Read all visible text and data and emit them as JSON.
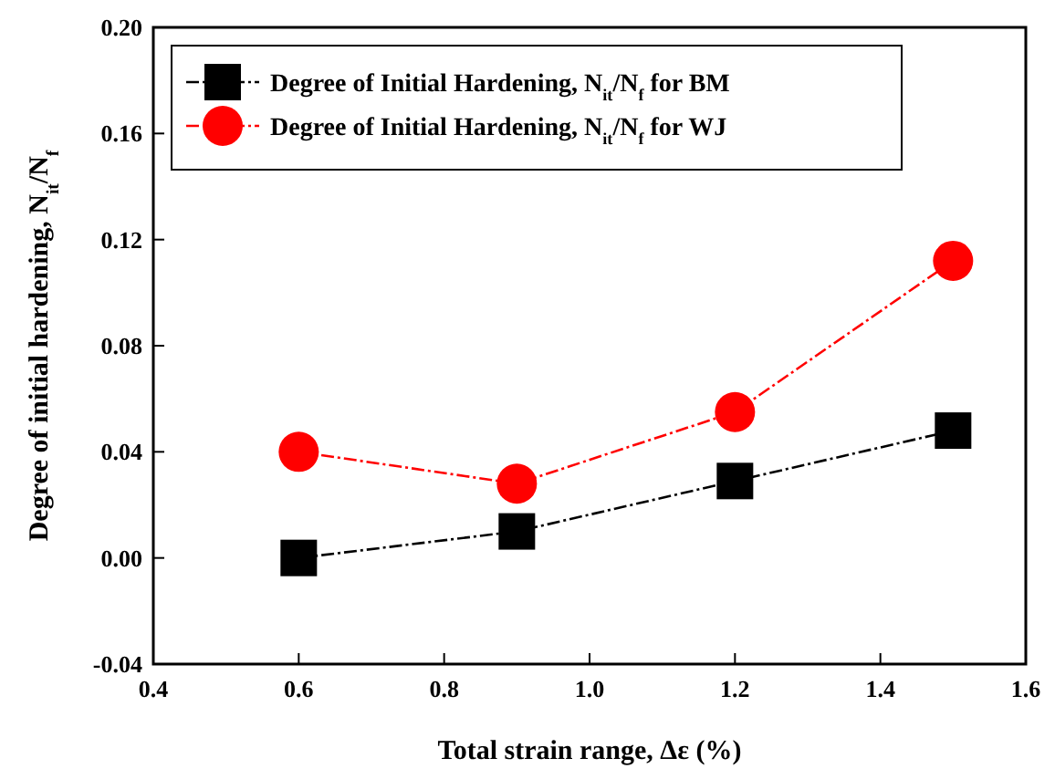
{
  "chart_data": {
    "type": "line",
    "xlabel": "Total strain range, Δε (%)",
    "ylabel": "Degree of initial hardening, N$_{it}$/N$_{f}$",
    "x": [
      0.6,
      0.9,
      1.2,
      1.5
    ],
    "series": [
      {
        "name": "Degree of Initial Hardening, N$_{it}$/N$_{f}$ for BM",
        "color": "#000000",
        "marker": "square",
        "values": [
          0.0,
          0.01,
          0.029,
          0.048
        ]
      },
      {
        "name": "Degree of Initial Hardening, N$_{it}$/N$_{f}$ for WJ",
        "color": "#ff0000",
        "marker": "circle",
        "values": [
          0.04,
          0.028,
          0.055,
          0.112
        ]
      }
    ],
    "xlim": [
      0.4,
      1.6
    ],
    "xticks": [
      0.4,
      0.6,
      0.8,
      {
        "value": 1.0,
        "label": "1.0"
      },
      1.2,
      1.4,
      1.6
    ],
    "ylim": [
      -0.04,
      0.2
    ],
    "yticks": [
      -0.04,
      {
        "value": 0.0,
        "label": "0.00"
      },
      0.04,
      0.08,
      0.12,
      0.16,
      {
        "value": 0.2,
        "label": "0.20"
      }
    ],
    "legend": "top left",
    "line_style": "dashed",
    "grid": false
  }
}
